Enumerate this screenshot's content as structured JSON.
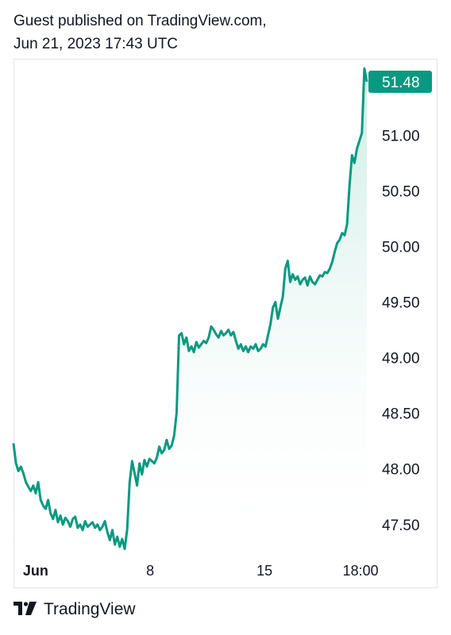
{
  "header": {
    "line1": "Guest published on TradingView.com,",
    "line2": "Jun 21, 2023 17:43 UTC"
  },
  "brand": {
    "name": "TradingView",
    "logo_icon": "tradingview-logo-icon"
  },
  "colors": {
    "line": "#089981",
    "label_bg": "#089981",
    "fill_top": "#b9e4da",
    "grid": "#e0e3eb"
  },
  "chart_data": {
    "type": "area",
    "last_price_label": "51.48",
    "y_ticks": [
      "51.00",
      "50.50",
      "50.00",
      "49.50",
      "49.00",
      "48.50",
      "48.00",
      "47.50"
    ],
    "y_tick_values": [
      51.0,
      50.5,
      50.0,
      49.5,
      49.0,
      48.5,
      48.0,
      47.5
    ],
    "ylim": [
      47.22,
      51.68
    ],
    "x_ticks": [
      {
        "label": "Jun",
        "x": 0.06,
        "bold": true
      },
      {
        "label": "8",
        "x": 0.37,
        "bold": false
      },
      {
        "label": "15",
        "x": 0.68,
        "bold": false
      },
      {
        "label": "18:00",
        "x": 0.94,
        "bold": false
      }
    ],
    "xlim": [
      0,
      1
    ],
    "series": [
      {
        "points": [
          [
            0.0,
            48.23
          ],
          [
            0.005,
            48.05
          ],
          [
            0.01,
            47.98
          ],
          [
            0.015,
            48.02
          ],
          [
            0.02,
            47.96
          ],
          [
            0.025,
            47.88
          ],
          [
            0.03,
            47.84
          ],
          [
            0.035,
            47.8
          ],
          [
            0.04,
            47.85
          ],
          [
            0.045,
            47.78
          ],
          [
            0.05,
            47.88
          ],
          [
            0.055,
            47.72
          ],
          [
            0.06,
            47.67
          ],
          [
            0.065,
            47.64
          ],
          [
            0.07,
            47.72
          ],
          [
            0.075,
            47.6
          ],
          [
            0.08,
            47.55
          ],
          [
            0.085,
            47.63
          ],
          [
            0.09,
            47.52
          ],
          [
            0.095,
            47.58
          ],
          [
            0.1,
            47.5
          ],
          [
            0.105,
            47.56
          ],
          [
            0.11,
            47.53
          ],
          [
            0.115,
            47.48
          ],
          [
            0.12,
            47.55
          ],
          [
            0.125,
            47.57
          ],
          [
            0.13,
            47.47
          ],
          [
            0.135,
            47.5
          ],
          [
            0.14,
            47.45
          ],
          [
            0.145,
            47.53
          ],
          [
            0.15,
            47.48
          ],
          [
            0.155,
            47.5
          ],
          [
            0.16,
            47.52
          ],
          [
            0.165,
            47.47
          ],
          [
            0.17,
            47.5
          ],
          [
            0.175,
            47.45
          ],
          [
            0.18,
            47.48
          ],
          [
            0.185,
            47.53
          ],
          [
            0.19,
            47.43
          ],
          [
            0.195,
            47.36
          ],
          [
            0.2,
            47.45
          ],
          [
            0.205,
            47.32
          ],
          [
            0.21,
            47.39
          ],
          [
            0.215,
            47.3
          ],
          [
            0.22,
            47.37
          ],
          [
            0.225,
            47.28
          ],
          [
            0.23,
            47.45
          ],
          [
            0.235,
            47.88
          ],
          [
            0.24,
            48.07
          ],
          [
            0.245,
            47.96
          ],
          [
            0.25,
            47.85
          ],
          [
            0.255,
            48.05
          ],
          [
            0.26,
            47.95
          ],
          [
            0.265,
            48.08
          ],
          [
            0.27,
            48.02
          ],
          [
            0.275,
            48.09
          ],
          [
            0.28,
            48.07
          ],
          [
            0.285,
            48.05
          ],
          [
            0.29,
            48.1
          ],
          [
            0.295,
            48.2
          ],
          [
            0.3,
            48.14
          ],
          [
            0.305,
            48.17
          ],
          [
            0.31,
            48.26
          ],
          [
            0.315,
            48.18
          ],
          [
            0.32,
            48.21
          ],
          [
            0.325,
            48.3
          ],
          [
            0.33,
            48.5
          ],
          [
            0.335,
            49.2
          ],
          [
            0.34,
            49.22
          ],
          [
            0.345,
            49.12
          ],
          [
            0.35,
            49.18
          ],
          [
            0.355,
            49.06
          ],
          [
            0.36,
            49.1
          ],
          [
            0.365,
            49.05
          ],
          [
            0.37,
            49.14
          ],
          [
            0.375,
            49.09
          ],
          [
            0.38,
            49.12
          ],
          [
            0.385,
            49.15
          ],
          [
            0.39,
            49.13
          ],
          [
            0.395,
            49.18
          ],
          [
            0.4,
            49.28
          ],
          [
            0.405,
            49.25
          ],
          [
            0.41,
            49.21
          ],
          [
            0.415,
            49.18
          ],
          [
            0.42,
            49.24
          ],
          [
            0.425,
            49.2
          ],
          [
            0.43,
            49.22
          ],
          [
            0.435,
            49.25
          ],
          [
            0.44,
            49.2
          ],
          [
            0.445,
            49.23
          ],
          [
            0.45,
            49.15
          ],
          [
            0.455,
            49.08
          ],
          [
            0.46,
            49.12
          ],
          [
            0.465,
            49.06
          ],
          [
            0.47,
            49.1
          ],
          [
            0.475,
            49.05
          ],
          [
            0.48,
            49.1
          ],
          [
            0.485,
            49.08
          ],
          [
            0.49,
            49.12
          ],
          [
            0.495,
            49.06
          ],
          [
            0.5,
            49.08
          ],
          [
            0.505,
            49.12
          ],
          [
            0.51,
            49.1
          ],
          [
            0.515,
            49.2
          ],
          [
            0.52,
            49.3
          ],
          [
            0.525,
            49.45
          ],
          [
            0.53,
            49.5
          ],
          [
            0.535,
            49.35
          ],
          [
            0.54,
            49.45
          ],
          [
            0.545,
            49.55
          ],
          [
            0.55,
            49.8
          ],
          [
            0.555,
            49.87
          ],
          [
            0.56,
            49.68
          ],
          [
            0.565,
            49.75
          ],
          [
            0.57,
            49.7
          ],
          [
            0.575,
            49.73
          ],
          [
            0.58,
            49.66
          ],
          [
            0.585,
            49.7
          ],
          [
            0.59,
            49.72
          ],
          [
            0.595,
            49.65
          ],
          [
            0.6,
            49.73
          ],
          [
            0.605,
            49.68
          ],
          [
            0.61,
            49.66
          ],
          [
            0.615,
            49.7
          ],
          [
            0.62,
            49.74
          ],
          [
            0.625,
            49.73
          ],
          [
            0.63,
            49.77
          ],
          [
            0.635,
            49.76
          ],
          [
            0.64,
            49.8
          ],
          [
            0.645,
            49.86
          ],
          [
            0.65,
            49.95
          ],
          [
            0.655,
            50.03
          ],
          [
            0.66,
            50.06
          ],
          [
            0.665,
            50.12
          ],
          [
            0.67,
            50.1
          ],
          [
            0.675,
            50.2
          ],
          [
            0.68,
            50.55
          ],
          [
            0.685,
            50.82
          ],
          [
            0.69,
            50.75
          ],
          [
            0.695,
            50.88
          ],
          [
            0.7,
            50.95
          ],
          [
            0.705,
            51.02
          ],
          [
            0.71,
            51.6
          ],
          [
            0.715,
            51.48
          ]
        ]
      }
    ]
  }
}
